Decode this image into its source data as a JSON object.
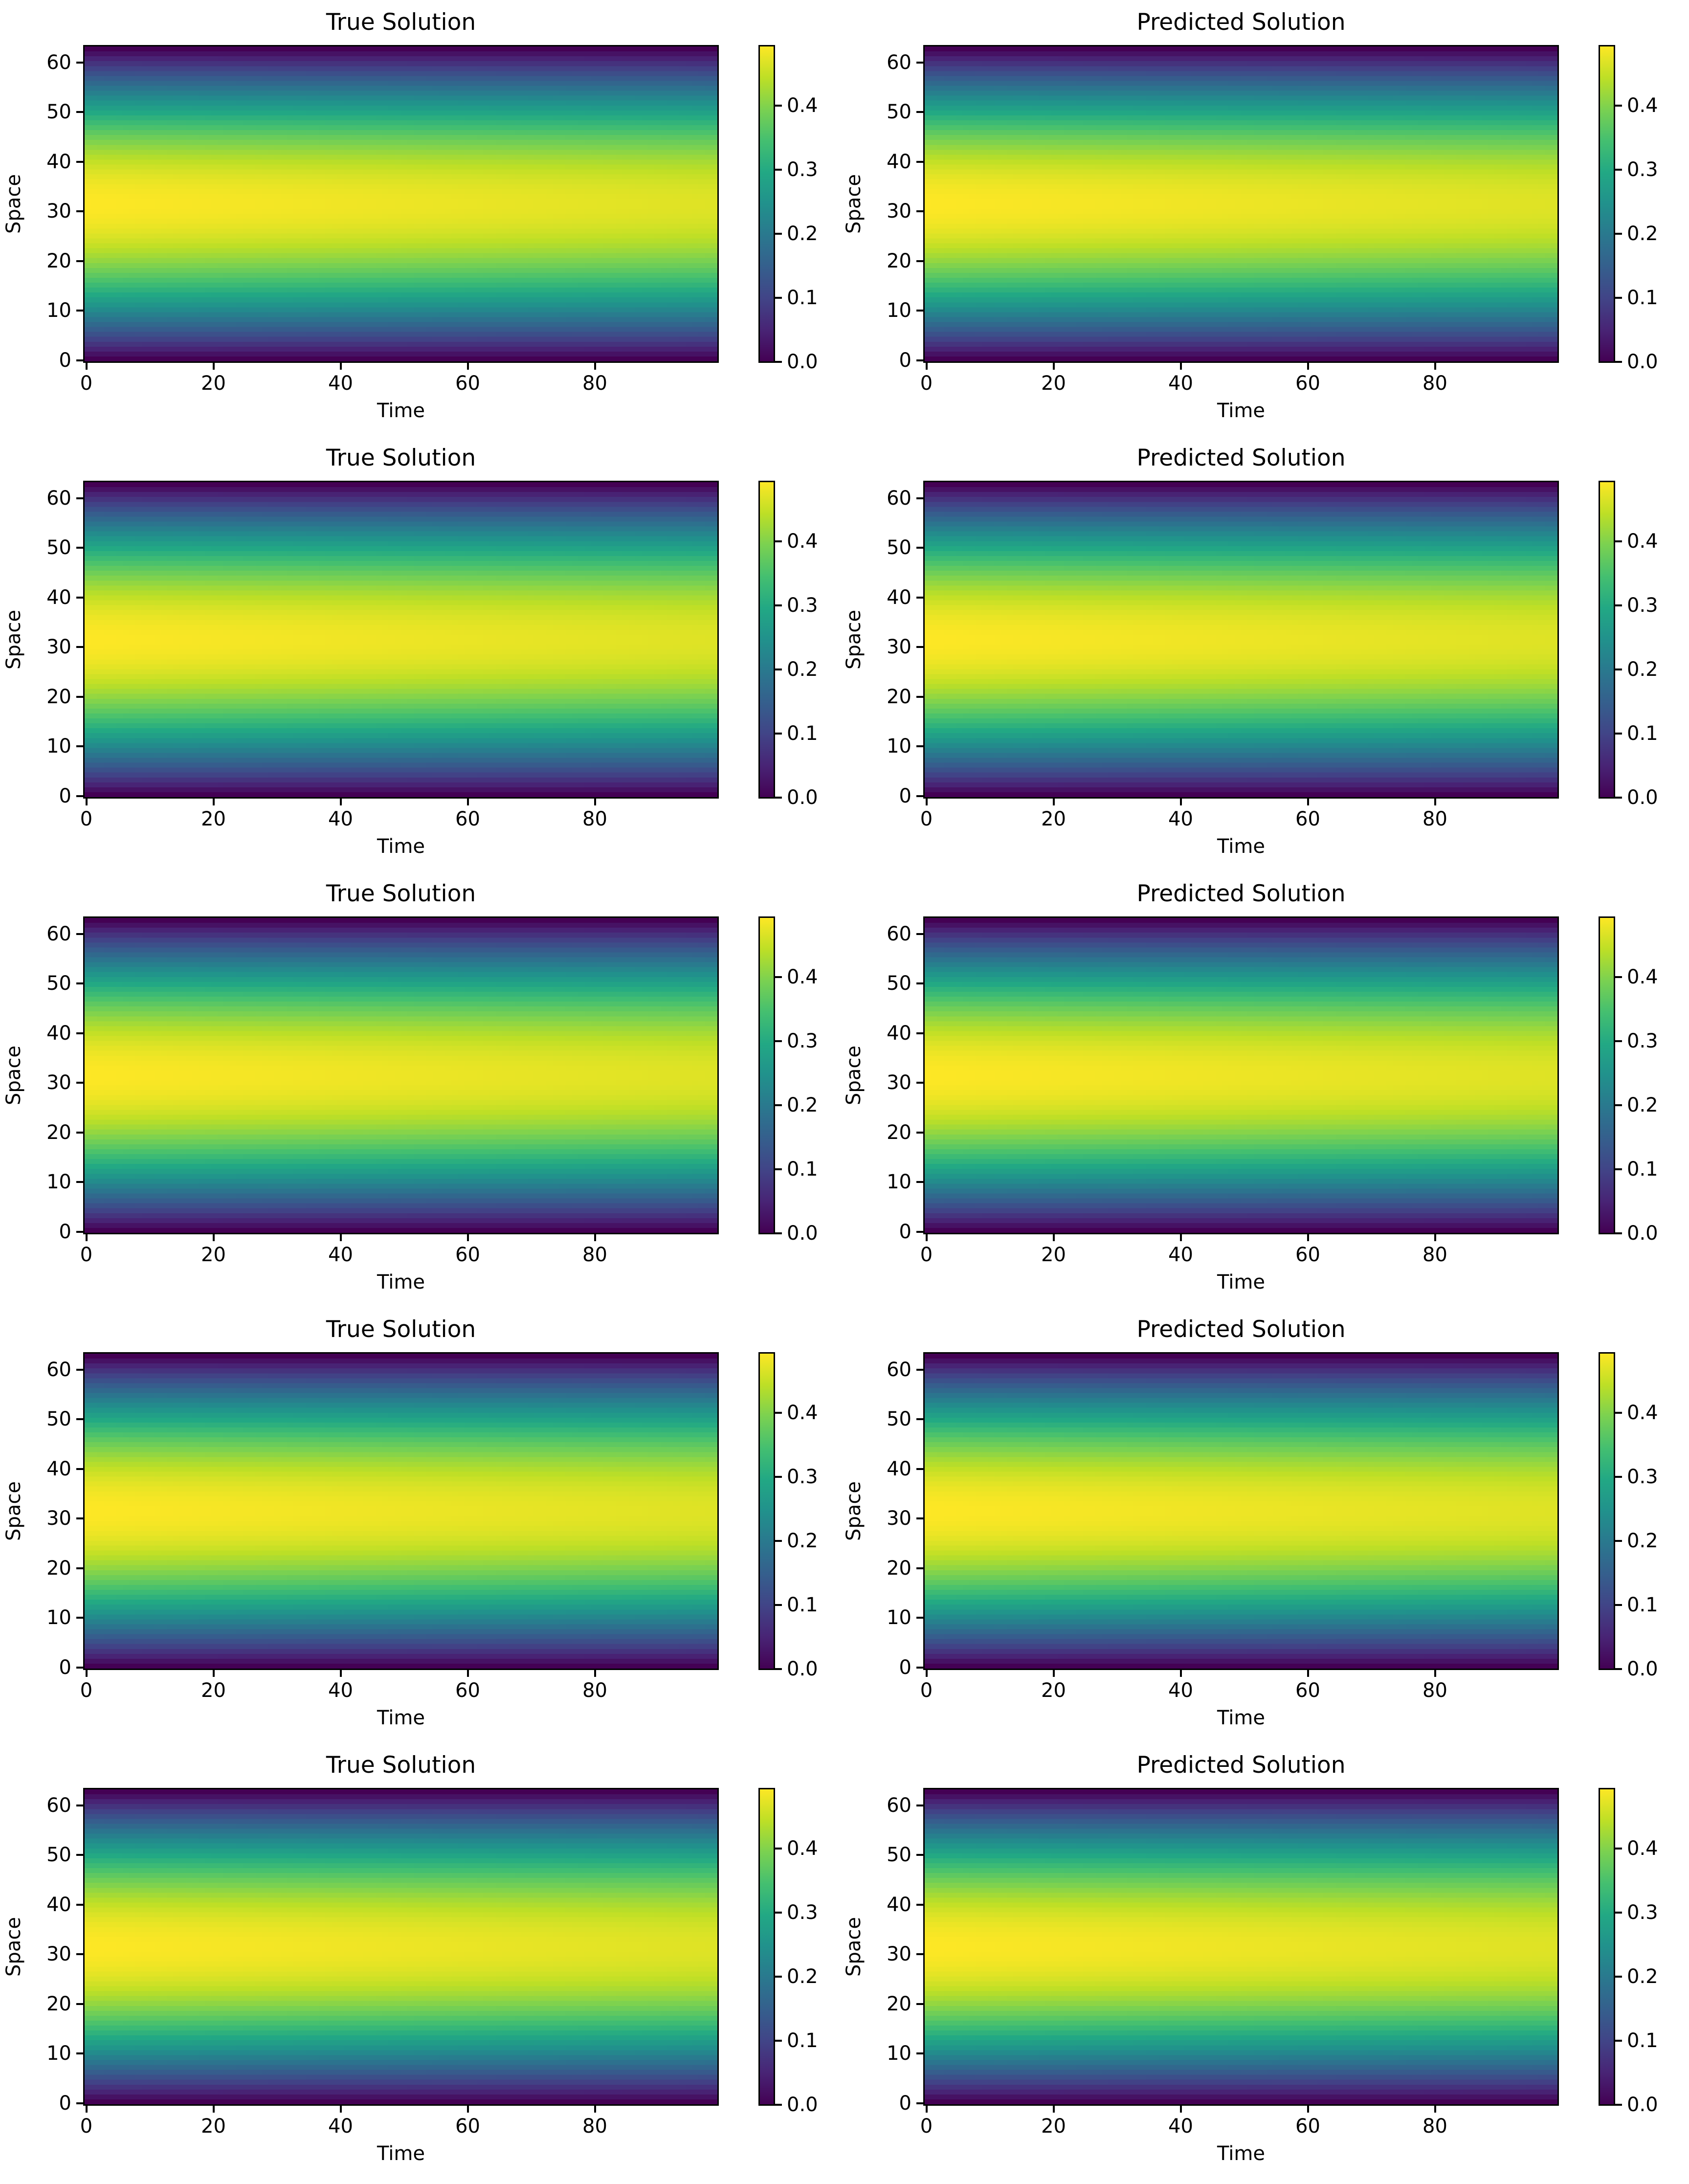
{
  "figure": {
    "rows": 5,
    "cols": 2
  },
  "panels": [
    {
      "title": "True Solution",
      "xlabel": "Time",
      "ylabel": "Space"
    },
    {
      "title": "Predicted Solution",
      "xlabel": "Time",
      "ylabel": "Space"
    },
    {
      "title": "True Solution",
      "xlabel": "Time",
      "ylabel": "Space"
    },
    {
      "title": "Predicted Solution",
      "xlabel": "Time",
      "ylabel": "Space"
    },
    {
      "title": "True Solution",
      "xlabel": "Time",
      "ylabel": "Space"
    },
    {
      "title": "Predicted Solution",
      "xlabel": "Time",
      "ylabel": "Space"
    },
    {
      "title": "True Solution",
      "xlabel": "Time",
      "ylabel": "Space"
    },
    {
      "title": "Predicted Solution",
      "xlabel": "Time",
      "ylabel": "Space"
    },
    {
      "title": "True Solution",
      "xlabel": "Time",
      "ylabel": "Space"
    },
    {
      "title": "Predicted Solution",
      "xlabel": "Time",
      "ylabel": "Space"
    }
  ],
  "axes": {
    "xticks": [
      "0",
      "20",
      "40",
      "60",
      "80"
    ],
    "yticks": [
      "0",
      "10",
      "20",
      "30",
      "40",
      "50",
      "60"
    ],
    "cticks": [
      "0.0",
      "0.1",
      "0.2",
      "0.3",
      "0.4"
    ]
  },
  "chart_data": [
    {
      "type": "heatmap",
      "title": "True Solution",
      "xlabel": "Time",
      "ylabel": "Space",
      "colormap": "viridis",
      "xlim": [
        -0.5,
        99.5
      ],
      "ylim": [
        -0.5,
        63.5
      ],
      "nx": 100,
      "ny": 64,
      "clim": [
        0.0,
        0.496
      ],
      "pattern": "u(x,t) = 0.496 * sin(pi*x/63) * exp(-0.0005*t)",
      "peak_value": 0.496,
      "peak_location": {
        "time": 0,
        "space": 31.5
      }
    },
    {
      "type": "heatmap",
      "title": "Predicted Solution",
      "xlabel": "Time",
      "ylabel": "Space",
      "colormap": "viridis",
      "xlim": [
        -0.5,
        99.5
      ],
      "ylim": [
        -0.5,
        63.5
      ],
      "nx": 100,
      "ny": 64,
      "clim": [
        0.0,
        0.496
      ],
      "pattern": "u(x,t) = 0.496 * sin(pi*x/63) * exp(-0.0005*t)",
      "peak_value": 0.496,
      "peak_location": {
        "time": 0,
        "space": 31.5
      }
    },
    {
      "type": "heatmap",
      "title": "True Solution",
      "xlabel": "Time",
      "ylabel": "Space",
      "colormap": "viridis",
      "xlim": [
        -0.5,
        99.5
      ],
      "ylim": [
        -0.5,
        63.5
      ],
      "nx": 100,
      "ny": 64,
      "clim": [
        0.0,
        0.496
      ],
      "pattern": "u(x,t) = 0.496 * sin(pi*x/63) * exp(-0.0005*t)",
      "peak_value": 0.496,
      "peak_location": {
        "time": 0,
        "space": 31.5
      }
    },
    {
      "type": "heatmap",
      "title": "Predicted Solution",
      "xlabel": "Time",
      "ylabel": "Space",
      "colormap": "viridis",
      "xlim": [
        -0.5,
        99.5
      ],
      "ylim": [
        -0.5,
        63.5
      ],
      "nx": 100,
      "ny": 64,
      "clim": [
        0.0,
        0.496
      ],
      "pattern": "u(x,t) = 0.496 * sin(pi*x/63) * exp(-0.0005*t)",
      "peak_value": 0.496,
      "peak_location": {
        "time": 0,
        "space": 31.5
      }
    },
    {
      "type": "heatmap",
      "title": "True Solution",
      "xlabel": "Time",
      "ylabel": "Space",
      "colormap": "viridis",
      "xlim": [
        -0.5,
        99.5
      ],
      "ylim": [
        -0.5,
        63.5
      ],
      "nx": 100,
      "ny": 64,
      "clim": [
        0.0,
        0.496
      ],
      "pattern": "u(x,t) = 0.496 * sin(pi*x/63) * exp(-0.0005*t)",
      "peak_value": 0.496,
      "peak_location": {
        "time": 0,
        "space": 31.5
      }
    },
    {
      "type": "heatmap",
      "title": "Predicted Solution",
      "xlabel": "Time",
      "ylabel": "Space",
      "colormap": "viridis",
      "xlim": [
        -0.5,
        99.5
      ],
      "ylim": [
        -0.5,
        63.5
      ],
      "nx": 100,
      "ny": 64,
      "clim": [
        0.0,
        0.496
      ],
      "pattern": "u(x,t) = 0.496 * sin(pi*x/63) * exp(-0.0005*t)",
      "peak_value": 0.496,
      "peak_location": {
        "time": 0,
        "space": 31.5
      }
    },
    {
      "type": "heatmap",
      "title": "True Solution",
      "xlabel": "Time",
      "ylabel": "Space",
      "colormap": "viridis",
      "xlim": [
        -0.5,
        99.5
      ],
      "ylim": [
        -0.5,
        63.5
      ],
      "nx": 100,
      "ny": 64,
      "clim": [
        0.0,
        0.496
      ],
      "pattern": "u(x,t) = 0.496 * sin(pi*x/63) * exp(-0.0005*t)",
      "peak_value": 0.496,
      "peak_location": {
        "time": 0,
        "space": 31.5
      }
    },
    {
      "type": "heatmap",
      "title": "Predicted Solution",
      "xlabel": "Time",
      "ylabel": "Space",
      "colormap": "viridis",
      "xlim": [
        -0.5,
        99.5
      ],
      "ylim": [
        -0.5,
        63.5
      ],
      "nx": 100,
      "ny": 64,
      "clim": [
        0.0,
        0.496
      ],
      "pattern": "u(x,t) = 0.496 * sin(pi*x/63) * exp(-0.0005*t)",
      "peak_value": 0.496,
      "peak_location": {
        "time": 0,
        "space": 31.5
      }
    },
    {
      "type": "heatmap",
      "title": "True Solution",
      "xlabel": "Time",
      "ylabel": "Space",
      "colormap": "viridis",
      "xlim": [
        -0.5,
        99.5
      ],
      "ylim": [
        -0.5,
        63.5
      ],
      "nx": 100,
      "ny": 64,
      "clim": [
        0.0,
        0.496
      ],
      "pattern": "u(x,t) = 0.496 * sin(pi*x/63) * exp(-0.0005*t)",
      "peak_value": 0.496,
      "peak_location": {
        "time": 0,
        "space": 31.5
      }
    },
    {
      "type": "heatmap",
      "title": "Predicted Solution",
      "xlabel": "Time",
      "ylabel": "Space",
      "colormap": "viridis",
      "xlim": [
        -0.5,
        99.5
      ],
      "ylim": [
        -0.5,
        63.5
      ],
      "nx": 100,
      "ny": 64,
      "clim": [
        0.0,
        0.496
      ],
      "pattern": "u(x,t) = 0.496 * sin(pi*x/63) * exp(-0.0005*t)",
      "peak_value": 0.496,
      "peak_location": {
        "time": 0,
        "space": 31.5
      }
    }
  ],
  "render": {
    "amplitude": 0.496,
    "decay": 0.0005,
    "nx": 100,
    "ny": 64,
    "vmin": 0.0,
    "vmax": 0.496,
    "viridis": [
      "#440154",
      "#482475",
      "#414487",
      "#355f8d",
      "#2a788e",
      "#21918c",
      "#22a884",
      "#44bf70",
      "#7ad151",
      "#bddf26",
      "#fde725"
    ]
  }
}
